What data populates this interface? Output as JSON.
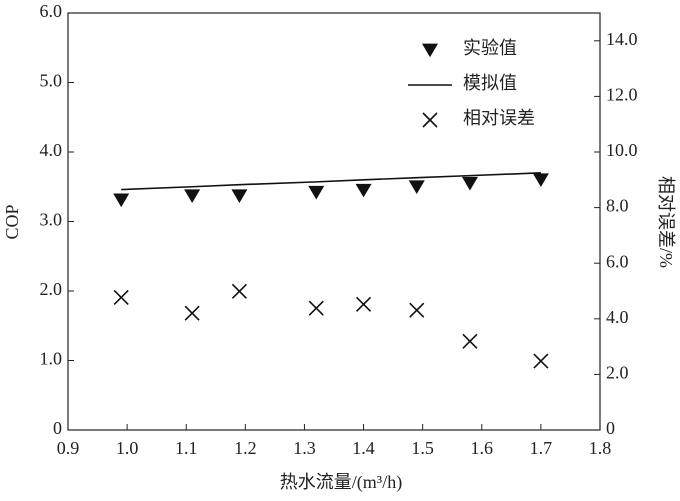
{
  "chart_data": {
    "type": "scatter",
    "x_label": "热水流量/(m³/h)",
    "y_label": "COP",
    "y2_label": "相对误差/%",
    "x": [
      0.99,
      1.11,
      1.19,
      1.32,
      1.4,
      1.49,
      1.58,
      1.7
    ],
    "series": [
      {
        "name": "实验值",
        "color": "#111111",
        "mode": "triangle-down",
        "values": [
          3.31,
          3.37,
          3.37,
          3.42,
          3.45,
          3.5,
          3.55,
          3.6
        ]
      },
      {
        "name": "模拟值",
        "color": "#111111",
        "mode": "line",
        "values": [
          3.46,
          3.5,
          3.53,
          3.57,
          3.6,
          3.63,
          3.66,
          3.7
        ]
      },
      {
        "name": "相对误差",
        "color": "#111111",
        "mode": "cross",
        "axis": "y2",
        "values": [
          4.77,
          4.2,
          4.99,
          4.38,
          4.52,
          4.31,
          3.19,
          2.48
        ]
      }
    ],
    "xlim": [
      0.9,
      1.8
    ],
    "xticks": [
      0.9,
      {
        "value": 1.0,
        "label": "1.0"
      },
      1.1,
      1.2,
      1.3,
      1.4,
      1.5,
      1.6,
      1.7,
      1.8
    ],
    "ylim": [
      0,
      6
    ],
    "yticks": [
      0,
      {
        "value": 1,
        "label": "1.0"
      },
      {
        "value": 2,
        "label": "2.0"
      },
      {
        "value": 3,
        "label": "3.0"
      },
      {
        "value": 4,
        "label": "4.0"
      },
      {
        "value": 5,
        "label": "5.0"
      },
      {
        "value": 6,
        "label": "6.0"
      }
    ],
    "y2lim": [
      0,
      15
    ],
    "y2ticks": [
      0,
      {
        "value": 2,
        "label": "2.0"
      },
      {
        "value": 4,
        "label": "4.0"
      },
      {
        "value": 6,
        "label": "6.0"
      },
      {
        "value": 8,
        "label": "8.0"
      },
      {
        "value": 10,
        "label": "10.0"
      },
      {
        "value": 12,
        "label": "12.0"
      },
      {
        "value": 14,
        "label": "14.0"
      }
    ],
    "legend": "upper right"
  }
}
